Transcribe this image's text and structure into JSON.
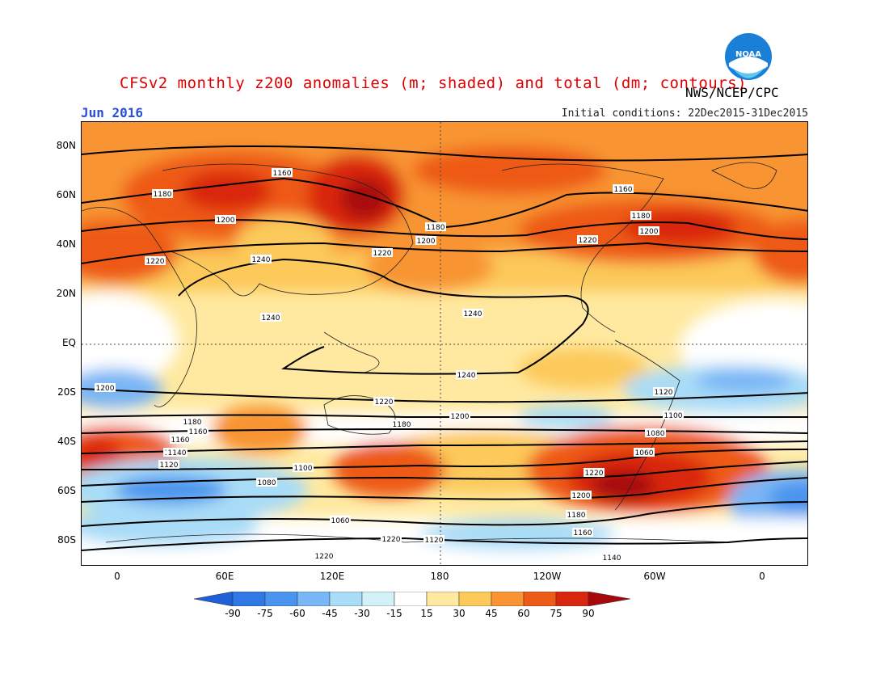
{
  "header": {
    "title": "CFSv2 monthly z200 anomalies (m; shaded) and total (dm; contours)",
    "credit": "NWS/NCEP/CPC",
    "month": "Jun 2016",
    "initial_conditions": "Initial conditions: 22Dec2015-31Dec2015",
    "logo_text": "NOAA"
  },
  "axes": {
    "y_ticks": [
      "80N",
      "60N",
      "40N",
      "20N",
      "EQ",
      "20S",
      "40S",
      "60S",
      "80S"
    ],
    "x_ticks": [
      "0",
      "60E",
      "120E",
      "180",
      "120W",
      "60W",
      "0"
    ]
  },
  "contour_labels": [
    "1160",
    "1180",
    "1200",
    "1220",
    "1240",
    "1240",
    "1180",
    "1200",
    "1220",
    "1160",
    "1180",
    "1200",
    "1220",
    "1240",
    "1240",
    "1220",
    "1200",
    "1180",
    "1160",
    "1140",
    "1120",
    "1100",
    "1080",
    "1060",
    "1220",
    "1200",
    "1180",
    "1160",
    "1140",
    "1120",
    "1100",
    "1080",
    "1060",
    "1220",
    "1200",
    "1180",
    "1160",
    "1140",
    "1120",
    "1100",
    "1220",
    "1240"
  ],
  "colorbar": {
    "labels": [
      "-90",
      "-75",
      "-60",
      "-45",
      "-30",
      "-15",
      "15",
      "30",
      "45",
      "60",
      "75",
      "90"
    ],
    "colors": [
      "#1f5fd8",
      "#2f78e6",
      "#4a94ee",
      "#79b6f5",
      "#a9dcf7",
      "#d2f2f8",
      "#ffffff",
      "#ffe9a0",
      "#fcc95a",
      "#f89433",
      "#ee5a17",
      "#d9260e",
      "#a8080b"
    ]
  }
}
